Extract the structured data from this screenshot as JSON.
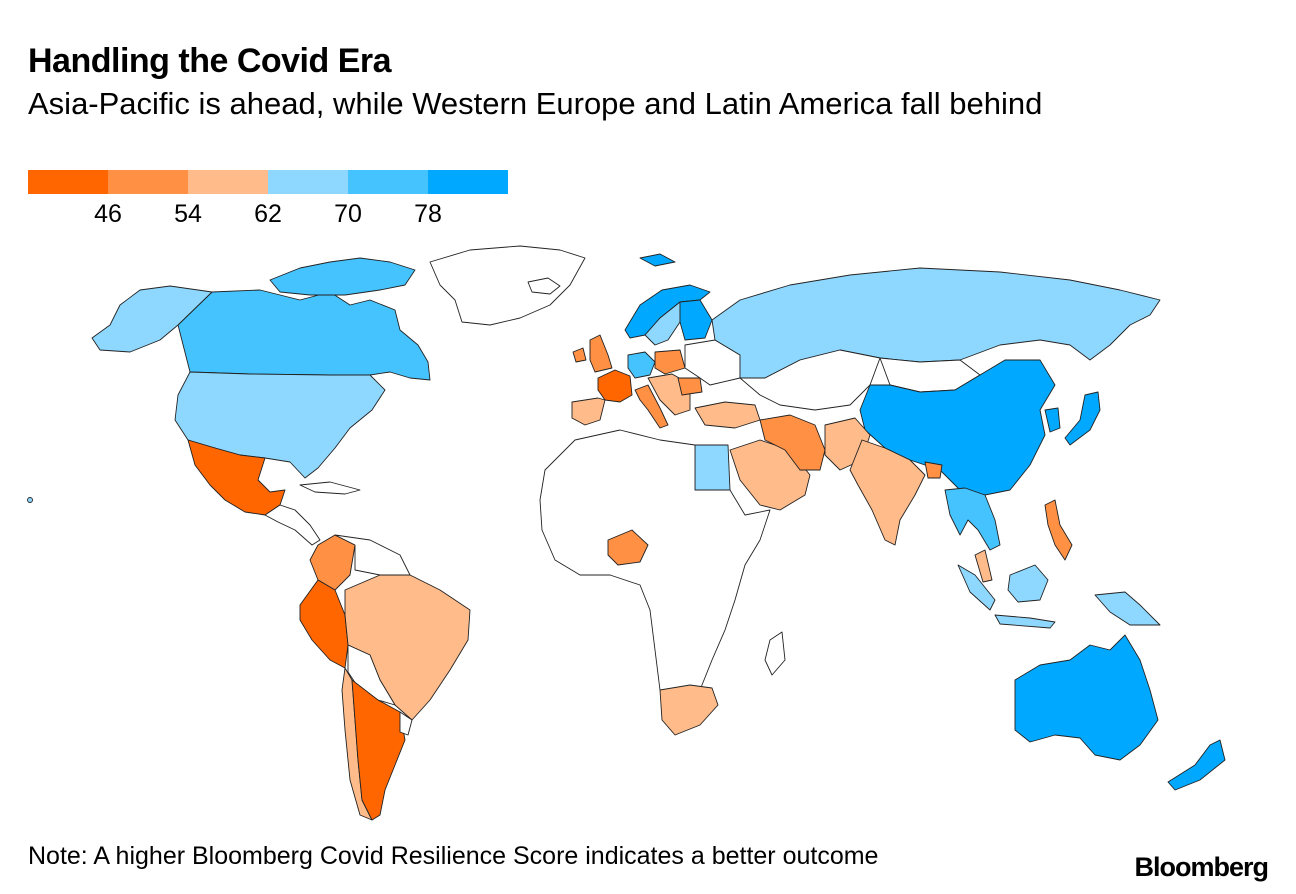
{
  "header": {
    "title": "Handling the Covid Era",
    "subtitle": "Asia-Pacific is ahead, while Western Europe and Latin America fall behind"
  },
  "legend": {
    "colors": [
      "#ff6600",
      "#ff9044",
      "#ffbb8a",
      "#8ed8ff",
      "#45c3ff",
      "#00a9ff"
    ],
    "ticks": [
      "46",
      "54",
      "62",
      "70",
      "78"
    ]
  },
  "map": {
    "colors": {
      "no_data": "#ffffff",
      "border": "#222222"
    }
  },
  "footer": {
    "note": "Note: A higher Bloomberg Covid Resilience Score indicates a better outcome",
    "source_logo": "Bloomberg"
  }
}
